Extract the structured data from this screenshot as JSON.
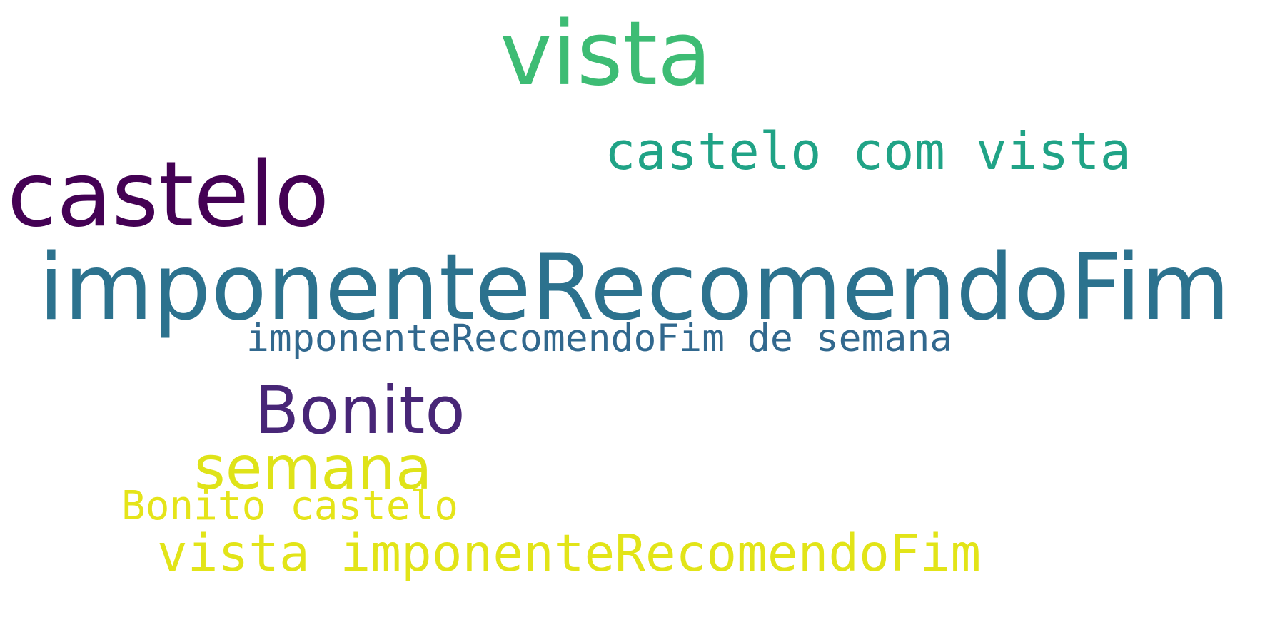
{
  "words": {
    "vista_top": {
      "text": "vista",
      "color": "#3dbc74"
    },
    "castelo_com_vista": {
      "text": "castelo com vista",
      "color": "#20a386"
    },
    "castelo_big": {
      "text": "castelo",
      "color": "#440154"
    },
    "imponente_big": {
      "text": "imponenteRecomendoFim",
      "color": "#2c728e"
    },
    "imponente_fim_de_semana": {
      "text": "imponenteRecomendoFim de semana",
      "color": "#31688e"
    },
    "bonito": {
      "text": "Bonito",
      "color": "#482677"
    },
    "semana": {
      "text": "semana",
      "color": "#dfe318"
    },
    "bonito_castelo": {
      "text": "Bonito castelo",
      "color": "#e5e419"
    },
    "vista_imponente": {
      "text": "vista imponenteRecomendoFim",
      "color": "#e2e418"
    }
  }
}
